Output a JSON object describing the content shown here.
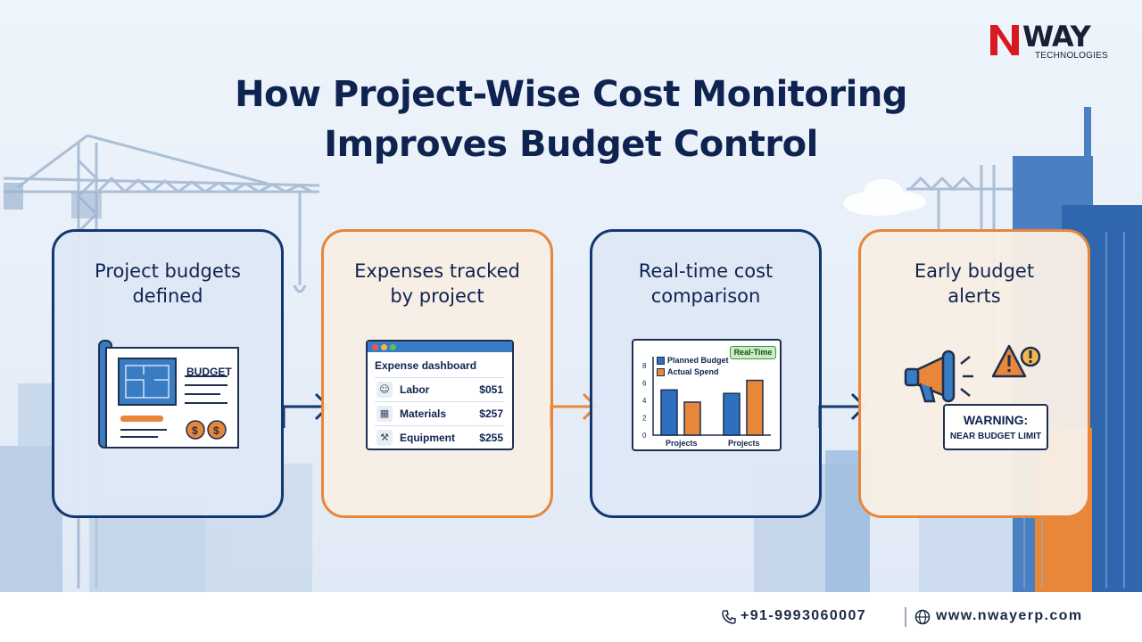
{
  "title": "How Project-Wise Cost Monitoring Improves Budget Control",
  "title_lines": [
    "How Project-Wise Cost Monitoring",
    "Improves Budget Control"
  ],
  "logo": {
    "word": "WAY",
    "subtitle": "TECHNOLOGIES",
    "mark_letter": "N"
  },
  "steps": [
    {
      "title": "Project budgets defined",
      "title_lines": [
        "Project budgets",
        "defined"
      ],
      "style": "blue",
      "illustration": {
        "label": "BUDGET",
        "icon": "blueprint-budget-icon"
      }
    },
    {
      "title": "Expenses tracked by project",
      "title_lines": [
        "Expenses tracked",
        "by project"
      ],
      "style": "orange",
      "illustration": {
        "header": "Expense dashboard",
        "rows": [
          {
            "name": "Labor",
            "amount": "$051",
            "icon": "worker-icon"
          },
          {
            "name": "Materials",
            "amount": "$257",
            "icon": "bricks-icon"
          },
          {
            "name": "Equipment",
            "amount": "$255",
            "icon": "drill-icon"
          }
        ]
      }
    },
    {
      "title": "Real-time cost comparison",
      "title_lines": [
        "Real-time cost",
        "comparison"
      ],
      "style": "blue",
      "illustration": {
        "badge": "Real-Time"
      }
    },
    {
      "title": "Early budget alerts",
      "title_lines": [
        "Early budget",
        "alerts"
      ],
      "style": "orange",
      "illustration": {
        "warning_title": "WARNING:",
        "warning_text": "NEAR BUDGET LIMIT",
        "icons": [
          "megaphone-icon",
          "warning-triangle-icon"
        ]
      }
    }
  ],
  "chart_data": {
    "type": "bar",
    "categories": [
      "Projects",
      "Projects"
    ],
    "series": [
      {
        "name": "Planned Budget",
        "values": [
          5.2,
          4.8
        ],
        "color": "#2f6fbf"
      },
      {
        "name": "Actual Spend",
        "values": [
          3.8,
          6.3
        ],
        "color": "#e8863a"
      }
    ],
    "yticks": [
      "0",
      "2",
      "4",
      "6",
      "8"
    ],
    "ylim": [
      0,
      8
    ],
    "legend_position": "top-left",
    "badge": "Real-Time"
  },
  "contact": {
    "phone": "+91-9993060007",
    "website": "www.nwayerp.com"
  },
  "colors": {
    "navy": "#0f2350",
    "orange": "#e8863a",
    "blue": "#2f6fbf",
    "logo_red": "#d71920"
  }
}
